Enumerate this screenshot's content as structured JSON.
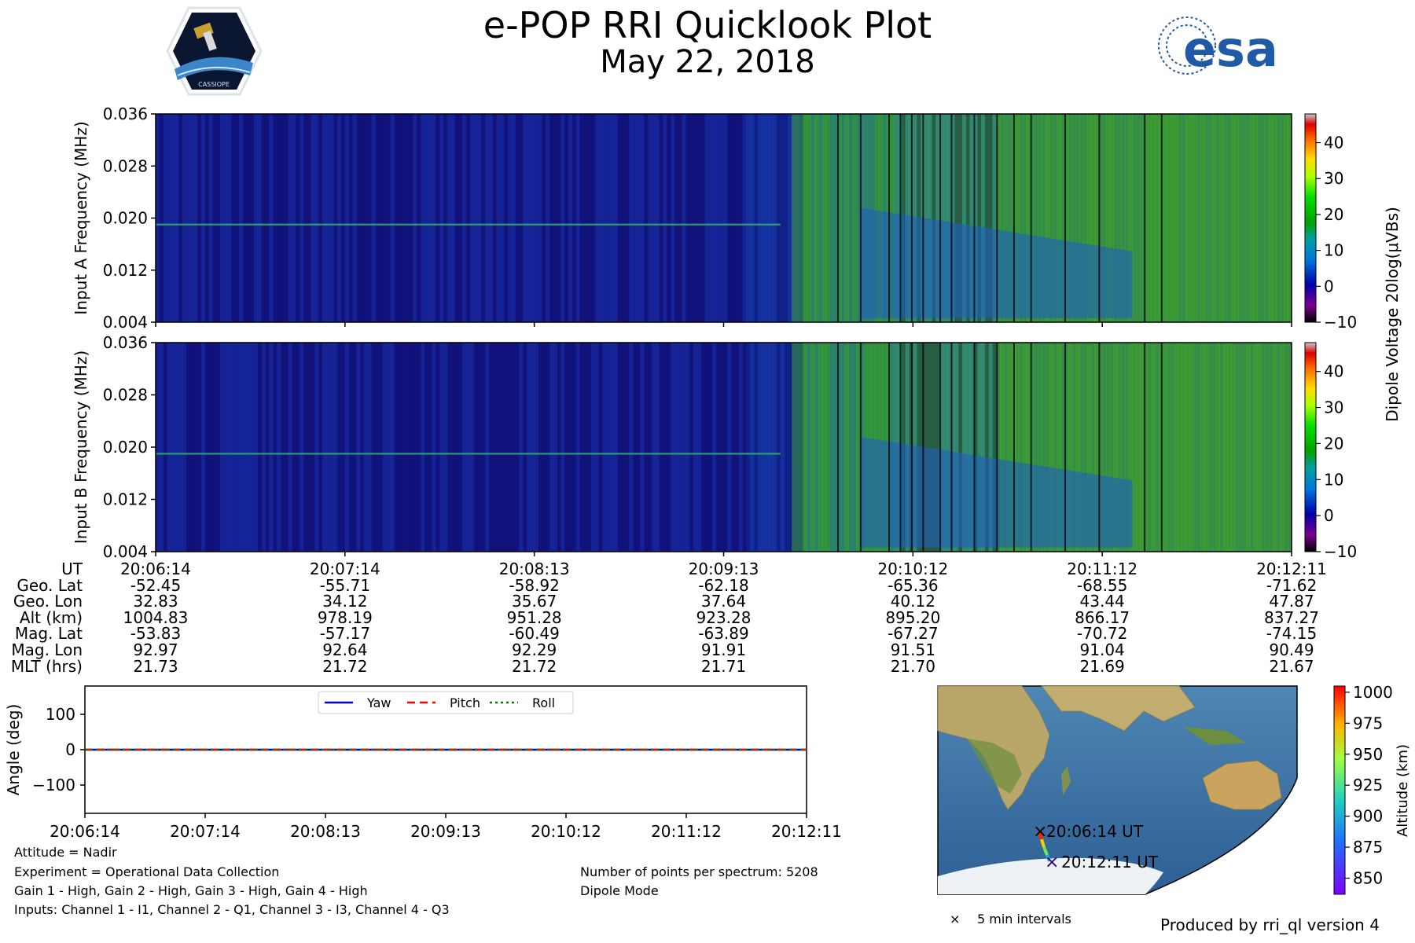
{
  "header": {
    "title": "e-POP RRI Quicklook Plot",
    "subtitle": "May 22, 2018",
    "logo_left_text": "CASSIOPE",
    "logo_right_text": "esa"
  },
  "chart_data": [
    {
      "type": "heatmap",
      "panel": "Input A spectrogram",
      "ylabel": "Input A Frequency (MHz)",
      "yticks": [
        "0.004",
        "0.012",
        "0.020",
        "0.028",
        "0.036"
      ],
      "ylim": [
        0.004,
        0.036
      ],
      "x_ticks": [
        "20:06:14",
        "20:07:14",
        "20:08:13",
        "20:09:13",
        "20:10:12",
        "20:11:12",
        "20:12:11"
      ],
      "colorbar": {
        "label": "Dipole Voltage 20log(μVBs)",
        "range": [
          -10,
          48
        ],
        "ticks": [
          "−10",
          "0",
          "10",
          "20",
          "30",
          "40"
        ],
        "colormap": "nipy_spectral"
      }
    },
    {
      "type": "heatmap",
      "panel": "Input B spectrogram",
      "ylabel": "Input B Frequency (MHz)",
      "yticks": [
        "0.004",
        "0.012",
        "0.020",
        "0.028",
        "0.036"
      ],
      "ylim": [
        0.004,
        0.036
      ],
      "x_ticks": [
        "20:06:14",
        "20:07:14",
        "20:08:13",
        "20:09:13",
        "20:10:12",
        "20:11:12",
        "20:12:11"
      ],
      "colorbar": {
        "label": "Dipole Voltage 20log(μVBs)",
        "range": [
          -10,
          48
        ],
        "ticks": [
          "−10",
          "0",
          "10",
          "20",
          "30",
          "40"
        ],
        "colormap": "nipy_spectral"
      }
    },
    {
      "type": "line",
      "panel": "Attitude",
      "ylabel": "Angle (deg)",
      "ylim": [
        -180,
        180
      ],
      "yticks": [
        "−100",
        "0",
        "100"
      ],
      "x": [
        "20:06:14",
        "20:07:14",
        "20:08:13",
        "20:09:13",
        "20:10:12",
        "20:11:12",
        "20:12:11"
      ],
      "series": [
        {
          "name": "Yaw",
          "color": "#0000ff",
          "style": "solid",
          "values": [
            0,
            0,
            0,
            0,
            0,
            0,
            0
          ]
        },
        {
          "name": "Pitch",
          "color": "#ff0000",
          "style": "dashed",
          "values": [
            0,
            0,
            0,
            0,
            0,
            0,
            0
          ]
        },
        {
          "name": "Roll",
          "color": "#008000",
          "style": "dotted",
          "values": [
            0,
            0,
            0,
            0,
            0,
            0,
            0
          ]
        }
      ],
      "legend": "top-center"
    },
    {
      "type": "scatter",
      "panel": "Orbit map",
      "annotations": [
        "20:06:14 UT",
        "20:12:11 UT"
      ],
      "legend": {
        "marker": "×",
        "label": "5 min intervals"
      },
      "colorbar": {
        "label": "Altitude (km)",
        "range": [
          837,
          1005
        ],
        "ticks": [
          "850",
          "875",
          "900",
          "925",
          "950",
          "975",
          "1000"
        ],
        "colormap": "rainbow"
      }
    }
  ],
  "ephemeris": {
    "labels": [
      "UT",
      "Geo. Lat",
      "Geo. Lon",
      "Alt (km)",
      "Mag. Lat",
      "Mag. Lon",
      "MLT (hrs)"
    ],
    "columns": [
      [
        "20:06:14",
        "-52.45",
        "32.83",
        "1004.83",
        "-53.83",
        "92.97",
        "21.73"
      ],
      [
        "20:07:14",
        "-55.71",
        "34.12",
        "978.19",
        "-57.17",
        "92.64",
        "21.72"
      ],
      [
        "20:08:13",
        "-58.92",
        "35.67",
        "951.28",
        "-60.49",
        "92.29",
        "21.72"
      ],
      [
        "20:09:13",
        "-62.18",
        "37.64",
        "923.28",
        "-63.89",
        "91.91",
        "21.71"
      ],
      [
        "20:10:12",
        "-65.36",
        "40.12",
        "895.20",
        "-67.27",
        "91.51",
        "21.70"
      ],
      [
        "20:11:12",
        "-68.55",
        "43.44",
        "866.17",
        "-70.72",
        "91.04",
        "21.69"
      ],
      [
        "20:12:11",
        "-71.62",
        "47.87",
        "837.27",
        "-74.15",
        "90.49",
        "21.67"
      ]
    ]
  },
  "notes": {
    "attitude": "Attitude = Nadir",
    "experiment": "Experiment = Operational Data Collection",
    "gains": "Gain 1 - High, Gain 2 - High, Gain 3 - High, Gain 4 - High",
    "inputs": "Inputs: Channel 1 - I1, Channel 2 - Q1, Channel 3 - I3, Channel 4 - Q3",
    "points": "Number of points per spectrum: 5208",
    "mode": "Dipole Mode",
    "produced": "Produced by rri_ql version 4"
  },
  "colors": {
    "colormap_low": "#000088",
    "colormap_high": "#ff0000"
  }
}
